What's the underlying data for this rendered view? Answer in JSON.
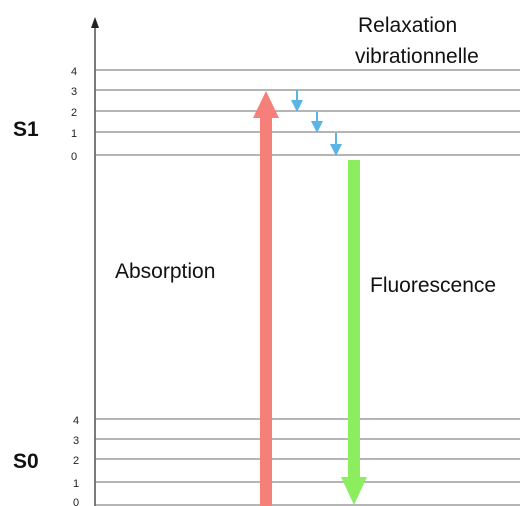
{
  "states": {
    "s1": {
      "label": "S1",
      "levels": [
        "4",
        "3",
        "2",
        "1",
        "0"
      ]
    },
    "s0": {
      "label": "S0",
      "levels": [
        "4",
        "3",
        "2",
        "1",
        "0"
      ]
    }
  },
  "labels": {
    "absorption": "Absorption",
    "fluorescence": "Fluorescence",
    "relaxation_line1": "Relaxation",
    "relaxation_line2": "vibrationnelle"
  },
  "colors": {
    "absorption": "#f77f7a",
    "fluorescence": "#8ced5f",
    "relaxation": "#5ab4e6"
  }
}
